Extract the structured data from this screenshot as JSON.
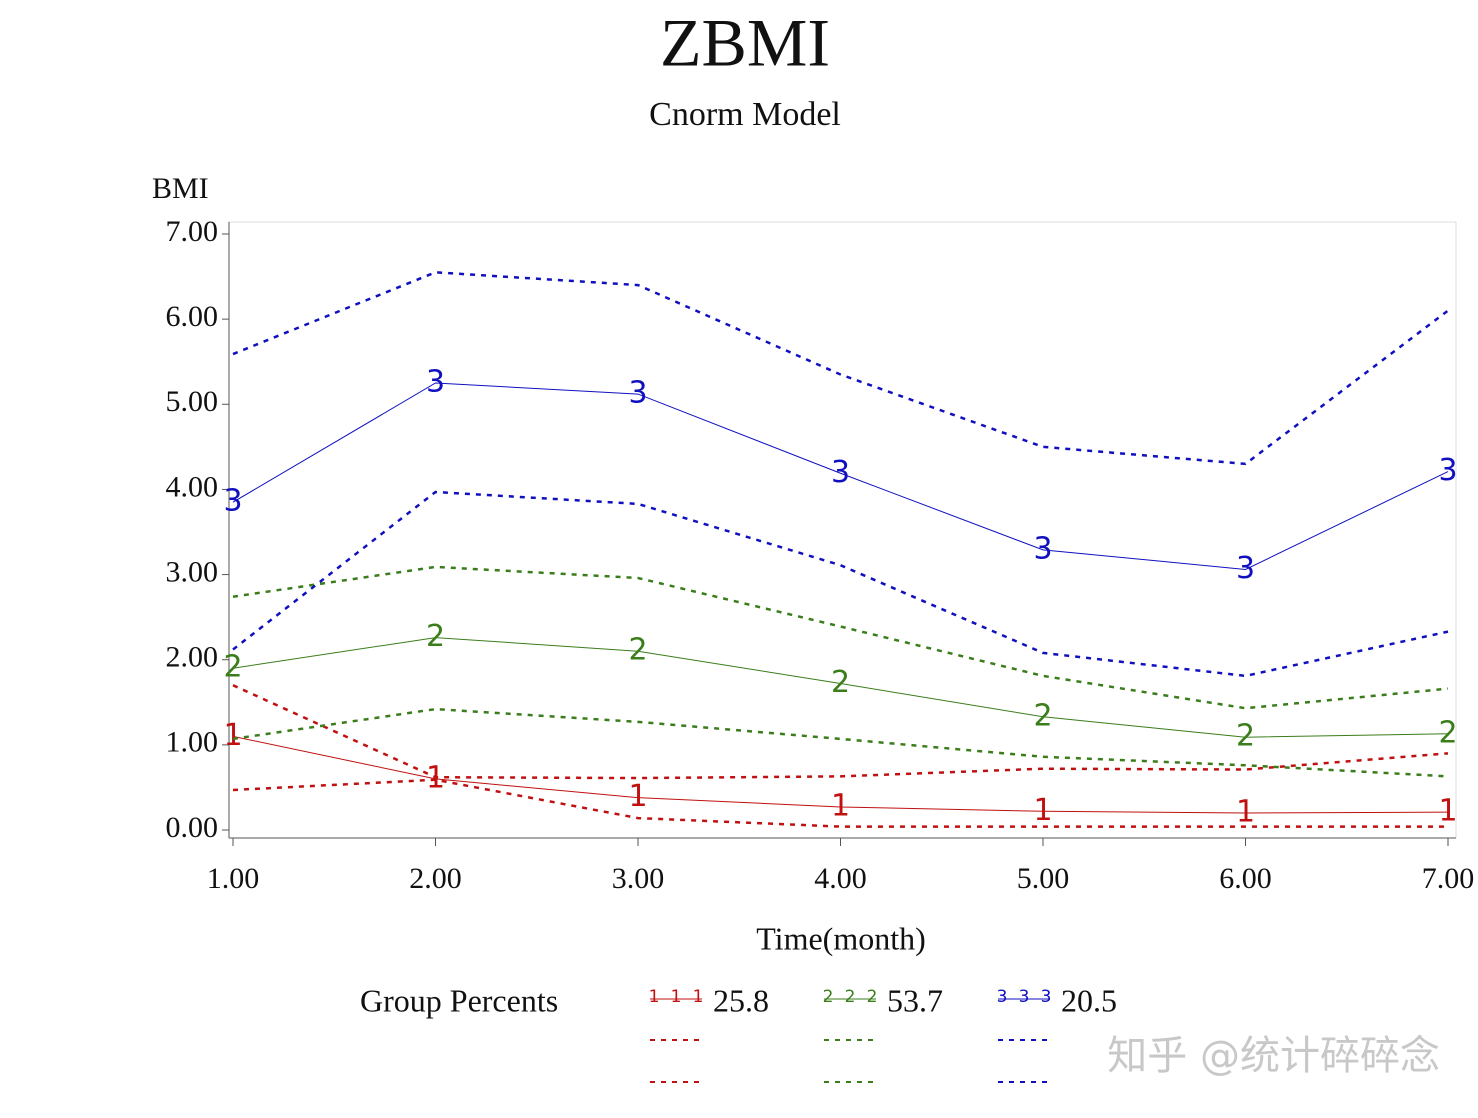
{
  "chart_data": {
    "type": "line",
    "title": "ZBMI",
    "subtitle": "Cnorm Model",
    "y_label": "BMI",
    "x_label": "Time(month)",
    "legend_title": "Group Percents",
    "watermark": "知乎 @统计碎碎念",
    "x": [
      1,
      2,
      3,
      4,
      5,
      6,
      7
    ],
    "xlim": [
      1,
      7
    ],
    "xticks": [
      {
        "value": 1,
        "label": "1.00"
      },
      {
        "value": 2,
        "label": "2.00"
      },
      {
        "value": 3,
        "label": "3.00"
      },
      {
        "value": 4,
        "label": "4.00"
      },
      {
        "value": 5,
        "label": "5.00"
      },
      {
        "value": 6,
        "label": "6.00"
      },
      {
        "value": 7,
        "label": "7.00"
      }
    ],
    "ylim": [
      0,
      7
    ],
    "yticks": [
      {
        "value": 0,
        "label": "0.00"
      },
      {
        "value": 1,
        "label": "1.00"
      },
      {
        "value": 2,
        "label": "2.00"
      },
      {
        "value": 3,
        "label": "3.00"
      },
      {
        "value": 4,
        "label": "4.00"
      },
      {
        "value": 5,
        "label": "5.00"
      },
      {
        "value": 6,
        "label": "6.00"
      },
      {
        "value": 7,
        "label": "7.00"
      }
    ],
    "series": [
      {
        "name": "25.8",
        "symbol": "1",
        "color": "#c01010",
        "values": [
          1.1,
          0.6,
          0.38,
          0.27,
          0.22,
          0.2,
          0.21
        ],
        "upper": [
          1.7,
          0.62,
          0.61,
          0.63,
          0.72,
          0.71,
          0.9
        ],
        "lower": [
          0.47,
          0.59,
          0.14,
          0.04,
          0.04,
          0.04,
          0.04
        ]
      },
      {
        "name": "53.7",
        "symbol": "2",
        "color": "#3a7d1a",
        "values": [
          1.9,
          2.26,
          2.1,
          1.72,
          1.33,
          1.09,
          1.13
        ],
        "upper": [
          2.74,
          3.09,
          2.96,
          2.39,
          1.81,
          1.43,
          1.66
        ],
        "lower": [
          1.07,
          1.42,
          1.27,
          1.07,
          0.86,
          0.76,
          0.63
        ]
      },
      {
        "name": "20.5",
        "symbol": "3",
        "color": "#1010c0",
        "values": [
          3.85,
          5.25,
          5.12,
          4.19,
          3.29,
          3.06,
          4.21
        ],
        "upper": [
          5.59,
          6.55,
          6.4,
          5.35,
          4.5,
          4.3,
          6.1
        ],
        "lower": [
          2.12,
          3.97,
          3.83,
          3.11,
          2.08,
          1.81,
          2.33
        ]
      }
    ]
  }
}
